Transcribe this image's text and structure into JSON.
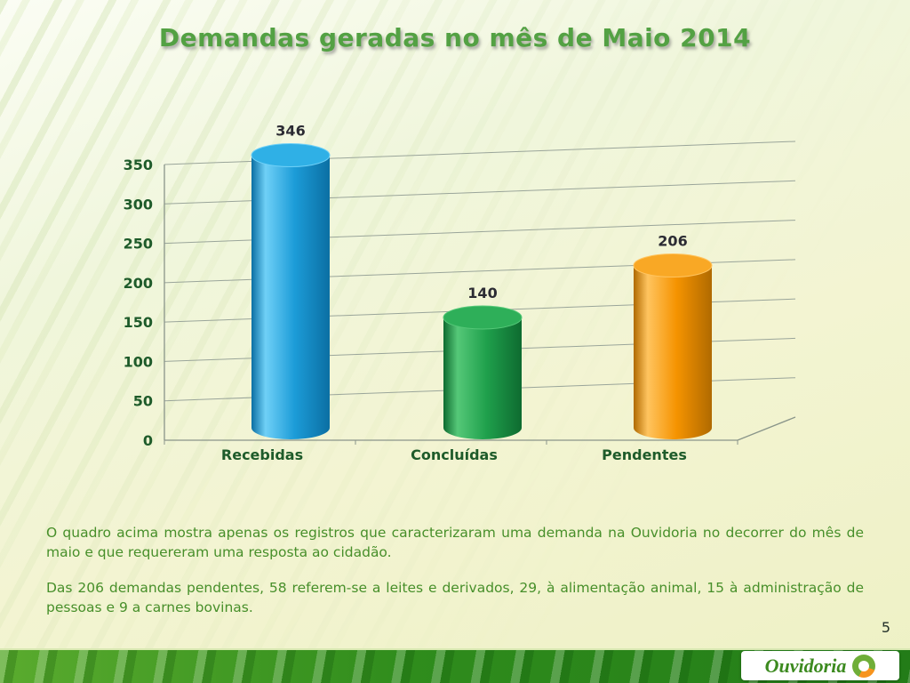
{
  "title": "Demandas geradas no mês de Maio 2014",
  "chart_data": {
    "type": "bar",
    "subtype": "3d-cylinder",
    "categories": [
      "Recebidas",
      "Concluídas",
      "Pendentes"
    ],
    "values": [
      346,
      140,
      206
    ],
    "series_colors": [
      {
        "light": "#6FD0F7",
        "mid": "#1C9CD8",
        "dark": "#0B6FA3",
        "top": "#2FB0E6"
      },
      {
        "light": "#55C878",
        "mid": "#1FA04C",
        "dark": "#0E6B30",
        "top": "#2EAF59"
      },
      {
        "light": "#FFC45F",
        "mid": "#F59300",
        "dark": "#B06A00",
        "top": "#F9A825"
      }
    ],
    "ylim": [
      0,
      350
    ],
    "ytick_interval": 50,
    "yticks": [
      0,
      50,
      100,
      150,
      200,
      250,
      300,
      350
    ],
    "grid": true,
    "legend": false,
    "label_color": "#1E5B2A",
    "value_label_color": "#2B2B33",
    "grid_color": "#9AA59A"
  },
  "paragraphs": [
    "O quadro acima mostra apenas os registros que caracterizaram uma demanda na Ouvidoria no decorrer do mês de maio e que requereram uma resposta ao cidadão.",
    "Das 206 demandas pendentes, 58 referem-se a leites e derivados, 29, à alimentação animal, 15 à administração de pessoas e 9 a carnes bovinas."
  ],
  "page_number": "5",
  "footer": {
    "logo_text": "Ouvidoria"
  }
}
